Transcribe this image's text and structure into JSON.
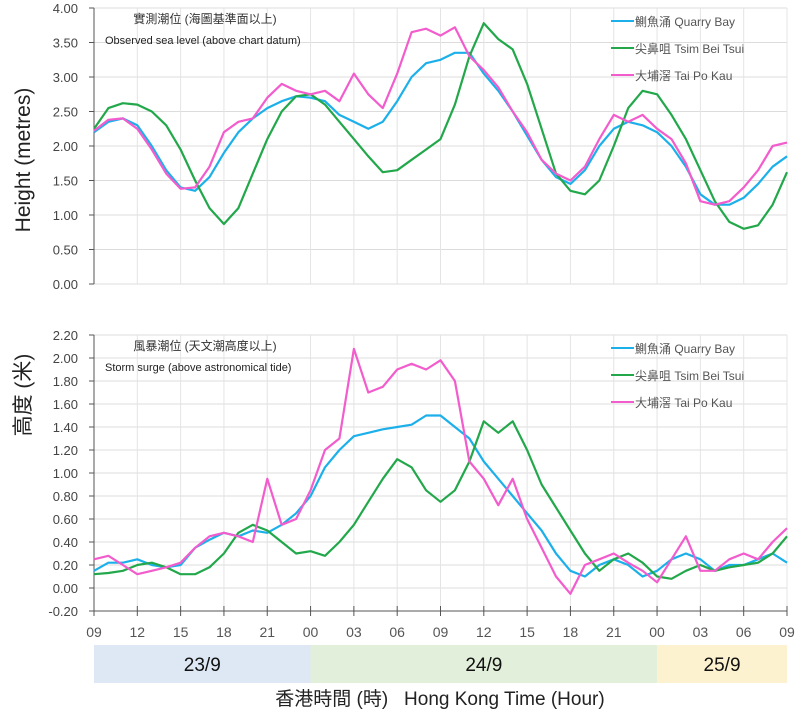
{
  "y_axis_label_en": "Height  (metres)",
  "y_axis_label_zh": "高度 (米)",
  "x_axis_title": "香港時間 (時)   Hong Kong Time (Hour)",
  "x_tick_labels": [
    "09",
    "12",
    "15",
    "18",
    "21",
    "00",
    "03",
    "06",
    "09",
    "12",
    "15",
    "18",
    "21",
    "00",
    "03",
    "06",
    "09"
  ],
  "date_bands": [
    {
      "label": "23/9",
      "color": "#dde8f4"
    },
    {
      "label": "24/9",
      "color": "#e2efda"
    },
    {
      "label": "25/9",
      "color": "#fdf2cf"
    }
  ],
  "colors": {
    "quarry_bay": "#1cb0ea",
    "tsim_bei_tsui": "#22a84a",
    "tai_po_kau": "#f25ccc"
  },
  "chart_data": [
    {
      "type": "line",
      "title_zh": "實測潮位  (海圖基準面以上)",
      "title_en": "Observed sea level (above chart datum)",
      "ylim": [
        0,
        4
      ],
      "y_ticks": [
        "0.00",
        "0.50",
        "1.00",
        "1.50",
        "2.00",
        "2.50",
        "3.00",
        "3.50",
        "4.00"
      ],
      "x_start": "23/9 09:00",
      "x_end": "25/9 09:00",
      "x_step_hours": 1,
      "grid": true,
      "legend": "top-right",
      "series": [
        {
          "name": "鰂魚涌 Quarry Bay",
          "color": "#1cb0ea",
          "values": [
            2.2,
            2.35,
            2.4,
            2.3,
            2.0,
            1.65,
            1.4,
            1.35,
            1.55,
            1.9,
            2.2,
            2.4,
            2.55,
            2.65,
            2.72,
            2.7,
            2.65,
            2.45,
            2.35,
            2.25,
            2.35,
            2.65,
            3.0,
            3.2,
            3.25,
            3.35,
            3.35,
            3.05,
            2.8,
            2.5,
            2.15,
            1.8,
            1.55,
            1.45,
            1.65,
            2.0,
            2.25,
            2.35,
            2.3,
            2.2,
            2.0,
            1.7,
            1.3,
            1.15,
            1.15,
            1.25,
            1.45,
            1.7,
            1.85
          ]
        },
        {
          "name": "尖鼻咀 Tsim Bei Tsui",
          "color": "#22a84a",
          "values": [
            2.25,
            2.55,
            2.62,
            2.6,
            2.5,
            2.3,
            1.95,
            1.5,
            1.1,
            0.87,
            1.1,
            1.6,
            2.1,
            2.5,
            2.72,
            2.75,
            2.6,
            2.35,
            2.1,
            1.85,
            1.62,
            1.65,
            1.8,
            1.95,
            2.1,
            2.6,
            3.3,
            3.78,
            3.55,
            3.4,
            2.9,
            2.25,
            1.6,
            1.35,
            1.3,
            1.5,
            2.0,
            2.55,
            2.8,
            2.75,
            2.45,
            2.1,
            1.65,
            1.2,
            0.9,
            0.8,
            0.85,
            1.15,
            1.62
          ]
        },
        {
          "name": "大埔滘 Tai Po Kau",
          "color": "#f25ccc",
          "values": [
            2.22,
            2.38,
            2.4,
            2.25,
            1.95,
            1.6,
            1.38,
            1.4,
            1.7,
            2.2,
            2.35,
            2.4,
            2.7,
            2.9,
            2.8,
            2.75,
            2.8,
            2.65,
            3.05,
            2.75,
            2.55,
            3.05,
            3.65,
            3.7,
            3.6,
            3.72,
            3.3,
            3.1,
            2.85,
            2.5,
            2.2,
            1.8,
            1.6,
            1.5,
            1.7,
            2.1,
            2.45,
            2.35,
            2.45,
            2.25,
            2.1,
            1.75,
            1.2,
            1.15,
            1.2,
            1.4,
            1.65,
            2.0,
            2.05
          ]
        }
      ]
    },
    {
      "type": "line",
      "title_zh": "風暴潮位  (天文潮高度以上)",
      "title_en": "Storm surge (above astronomical tide)",
      "ylim": [
        -0.2,
        2.2
      ],
      "y_ticks": [
        "-0.20",
        "0.00",
        "0.20",
        "0.40",
        "0.60",
        "0.80",
        "1.00",
        "1.20",
        "1.40",
        "1.60",
        "1.80",
        "2.00",
        "2.20"
      ],
      "x_start": "23/9 09:00",
      "x_end": "25/9 09:00",
      "x_step_hours": 1,
      "grid": true,
      "legend": "top-right",
      "series": [
        {
          "name": "鰂魚涌 Quarry Bay",
          "color": "#1cb0ea",
          "values": [
            0.15,
            0.22,
            0.22,
            0.25,
            0.2,
            0.18,
            0.2,
            0.35,
            0.42,
            0.48,
            0.45,
            0.5,
            0.48,
            0.55,
            0.65,
            0.8,
            1.05,
            1.2,
            1.32,
            1.35,
            1.38,
            1.4,
            1.42,
            1.5,
            1.5,
            1.4,
            1.3,
            1.1,
            0.95,
            0.8,
            0.65,
            0.5,
            0.3,
            0.15,
            0.1,
            0.2,
            0.25,
            0.2,
            0.1,
            0.15,
            0.25,
            0.3,
            0.25,
            0.15,
            0.2,
            0.2,
            0.25,
            0.3,
            0.22
          ]
        },
        {
          "name": "尖鼻咀 Tsim Bei Tsui",
          "color": "#22a84a",
          "values": [
            0.12,
            0.13,
            0.15,
            0.2,
            0.22,
            0.18,
            0.12,
            0.12,
            0.18,
            0.3,
            0.48,
            0.55,
            0.5,
            0.4,
            0.3,
            0.32,
            0.28,
            0.4,
            0.55,
            0.75,
            0.95,
            1.12,
            1.05,
            0.85,
            0.75,
            0.85,
            1.1,
            1.45,
            1.35,
            1.45,
            1.2,
            0.9,
            0.7,
            0.5,
            0.3,
            0.15,
            0.25,
            0.3,
            0.22,
            0.1,
            0.08,
            0.15,
            0.2,
            0.15,
            0.18,
            0.2,
            0.22,
            0.3,
            0.45
          ]
        },
        {
          "name": "大埔滘 Tai Po Kau",
          "color": "#f25ccc",
          "values": [
            0.25,
            0.28,
            0.2,
            0.12,
            0.15,
            0.18,
            0.22,
            0.35,
            0.45,
            0.48,
            0.45,
            0.4,
            0.95,
            0.55,
            0.6,
            0.85,
            1.2,
            1.3,
            2.08,
            1.7,
            1.75,
            1.9,
            1.95,
            1.9,
            1.98,
            1.8,
            1.1,
            0.95,
            0.72,
            0.95,
            0.6,
            0.35,
            0.1,
            -0.05,
            0.2,
            0.25,
            0.3,
            0.22,
            0.15,
            0.05,
            0.25,
            0.45,
            0.15,
            0.15,
            0.25,
            0.3,
            0.25,
            0.4,
            0.52
          ]
        }
      ]
    }
  ]
}
